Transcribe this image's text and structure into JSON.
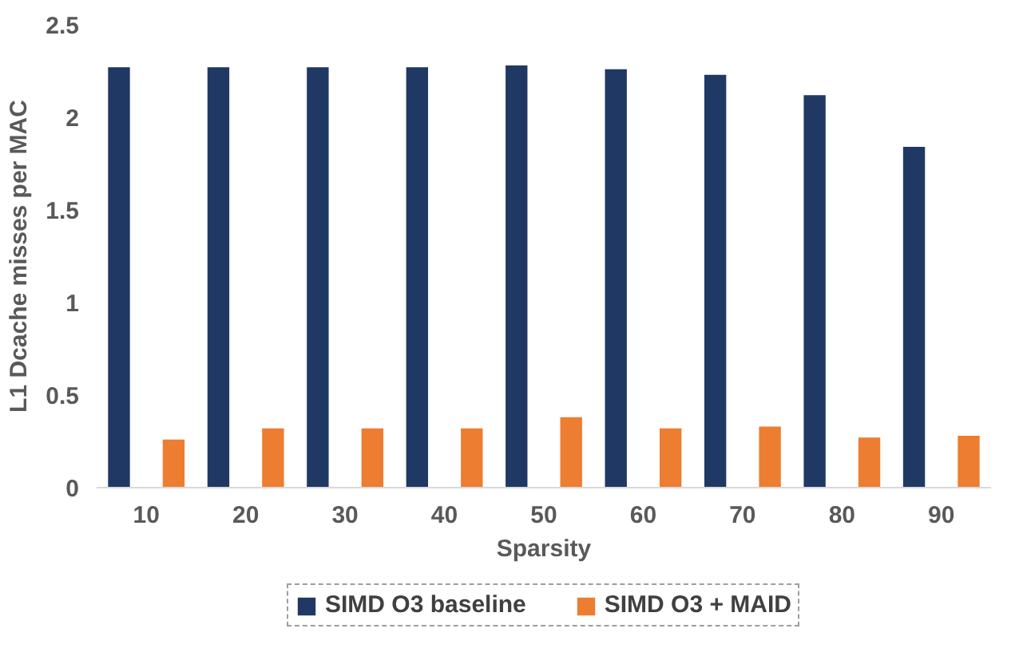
{
  "chart_data": {
    "type": "bar",
    "xlabel": "Sparsity",
    "ylabel": "L1 Dcache misses per MAC",
    "categories": [
      "10",
      "20",
      "30",
      "40",
      "50",
      "60",
      "70",
      "80",
      "90"
    ],
    "series": [
      {
        "name": "SIMD O3 baseline",
        "color": "#203864",
        "values": [
          2.27,
          2.27,
          2.27,
          2.27,
          2.28,
          2.26,
          2.23,
          2.12,
          1.84
        ]
      },
      {
        "name": "SIMD O3 + MAID",
        "color": "#ed7d31",
        "values": [
          0.26,
          0.32,
          0.32,
          0.32,
          0.38,
          0.32,
          0.33,
          0.27,
          0.28
        ]
      }
    ],
    "ylim": [
      0,
      2.5
    ],
    "yticks": [
      0,
      0.5,
      1,
      1.5,
      2,
      2.5
    ],
    "grid": false,
    "legend": "bottom"
  }
}
